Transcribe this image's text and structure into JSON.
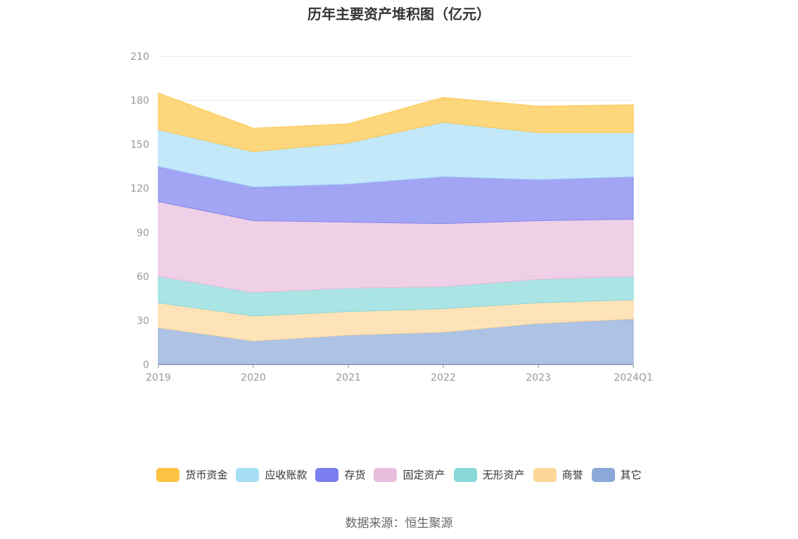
{
  "chart_data": {
    "type": "area",
    "stacked": true,
    "title": "历年主要资产堆积图（亿元）",
    "categories": [
      "2019",
      "2020",
      "2021",
      "2022",
      "2023",
      "2024Q1"
    ],
    "ylim": [
      0,
      210
    ],
    "yticks": [
      "0",
      "30",
      "60",
      "90",
      "120",
      "150",
      "180",
      "210"
    ],
    "grid": true,
    "legend_position": "bottom",
    "series": [
      {
        "name": "其它",
        "color": "#8aa8d8",
        "values": [
          25,
          16,
          20,
          22,
          28,
          31
        ]
      },
      {
        "name": "商誉",
        "color": "#fdd79a",
        "values": [
          17,
          17,
          16,
          16,
          14,
          13
        ]
      },
      {
        "name": "无形资产",
        "color": "#88d8d8",
        "values": [
          18,
          16,
          16,
          15,
          16,
          16
        ]
      },
      {
        "name": "固定资产",
        "color": "#e8bcdc",
        "values": [
          51,
          49,
          45,
          43,
          40,
          39
        ]
      },
      {
        "name": "存货",
        "color": "#7b7ff0",
        "values": [
          24,
          23,
          26,
          32,
          28,
          29
        ]
      },
      {
        "name": "应收账款",
        "color": "#a8def8",
        "values": [
          25,
          24,
          28,
          37,
          32,
          30
        ]
      },
      {
        "name": "货币资金",
        "color": "#fdc443",
        "values": [
          25,
          16,
          13,
          17,
          18,
          19
        ]
      }
    ]
  },
  "legend_order": [
    "货币资金",
    "应收账款",
    "存货",
    "固定资产",
    "无形资产",
    "商誉",
    "其它"
  ],
  "source": "数据来源：恒生聚源"
}
